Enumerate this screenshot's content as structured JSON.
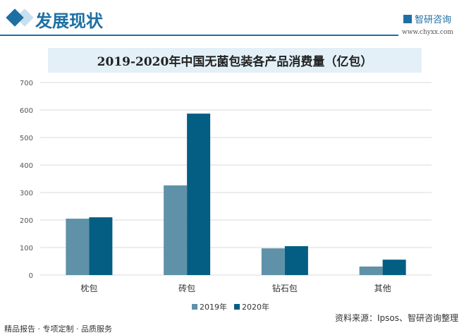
{
  "header": {
    "title": "发展现状",
    "brand": "智研咨询",
    "site": "www.chyxx.com"
  },
  "footer": {
    "tagline": "精品报告 · 专项定制 · 品质服务",
    "source": "资料来源：Ipsos、智研咨询整理"
  },
  "chart_data": {
    "type": "bar",
    "title": "2019-2020年中国无菌包装各产品消费量（亿包）",
    "categories": [
      "枕包",
      "砖包",
      "钻石包",
      "其他"
    ],
    "series": [
      {
        "name": "2019年",
        "values": [
          205,
          326,
          97,
          31
        ],
        "color": "#5f91a8"
      },
      {
        "name": "2020年",
        "values": [
          210,
          587,
          105,
          56
        ],
        "color": "#045e84"
      }
    ],
    "ylim": [
      0,
      700
    ],
    "yticks": [
      "0",
      "100",
      "200",
      "300",
      "400",
      "500",
      "600",
      "700"
    ],
    "grid": true,
    "legend": "bottom"
  }
}
